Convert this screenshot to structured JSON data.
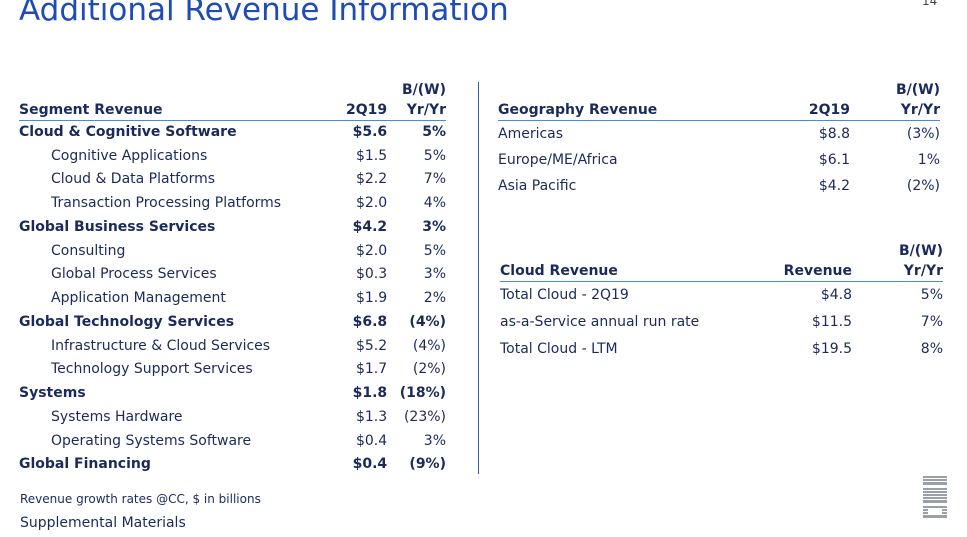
{
  "header": {
    "title": "Additional Revenue Information",
    "page_number": "14"
  },
  "segment": {
    "head_change_top": "B/(W)",
    "head_label": "Segment Revenue",
    "head_period": "2Q19",
    "head_change": "Yr/Yr",
    "rows": [
      {
        "label": "Cloud & Cognitive Software",
        "value": "$5.6",
        "change": "5%",
        "bold": true
      },
      {
        "label": "Cognitive Applications",
        "value": "$1.5",
        "change": "5%",
        "bold": false
      },
      {
        "label": "Cloud & Data Platforms",
        "value": "$2.2",
        "change": "7%",
        "bold": false
      },
      {
        "label": "Transaction Processing Platforms",
        "value": "$2.0",
        "change": "4%",
        "bold": false
      },
      {
        "label": "Global Business Services",
        "value": "$4.2",
        "change": "3%",
        "bold": true
      },
      {
        "label": "Consulting",
        "value": "$2.0",
        "change": "5%",
        "bold": false
      },
      {
        "label": "Global Process Services",
        "value": "$0.3",
        "change": "3%",
        "bold": false
      },
      {
        "label": "Application Management",
        "value": "$1.9",
        "change": "2%",
        "bold": false
      },
      {
        "label": "Global Technology Services",
        "value": "$6.8",
        "change": "(4%)",
        "bold": true
      },
      {
        "label": "Infrastructure & Cloud Services",
        "value": "$5.2",
        "change": "(4%)",
        "bold": false
      },
      {
        "label": "Technology Support Services",
        "value": "$1.7",
        "change": "(2%)",
        "bold": false
      },
      {
        "label": "Systems",
        "value": "$1.8",
        "change": "(18%)",
        "bold": true
      },
      {
        "label": "Systems Hardware",
        "value": "$1.3",
        "change": "(23%)",
        "bold": false
      },
      {
        "label": "Operating Systems Software",
        "value": "$0.4",
        "change": "3%",
        "bold": false
      },
      {
        "label": "Global Financing",
        "value": "$0.4",
        "change": "(9%)",
        "bold": true
      }
    ]
  },
  "geography": {
    "head_change_top": "B/(W)",
    "head_label": "Geography Revenue",
    "head_period": "2Q19",
    "head_change": "Yr/Yr",
    "rows": [
      {
        "label": "Americas",
        "value": "$8.8",
        "change": "(3%)"
      },
      {
        "label": "Europe/ME/Africa",
        "value": "$6.1",
        "change": "1%"
      },
      {
        "label": "Asia Pacific",
        "value": "$4.2",
        "change": "(2%)"
      }
    ]
  },
  "cloud": {
    "head_change_top": "B/(W)",
    "head_label": "Cloud Revenue",
    "head_period": "Revenue",
    "head_change": "Yr/Yr",
    "rows": [
      {
        "label": "Total Cloud - 2Q19",
        "value": "$4.8",
        "change": "5%"
      },
      {
        "label": "as-a-Service annual run rate",
        "value": "$11.5",
        "change": "7%"
      },
      {
        "label": "Total Cloud - LTM",
        "value": "$19.5",
        "change": "8%"
      }
    ]
  },
  "footer": {
    "footnote": "Revenue growth rates @CC, $ in billions",
    "supplemental": "Supplemental Materials",
    "logo_text": "IBM"
  },
  "colors": {
    "title": "#1f4bb4",
    "text": "#1b2a5a",
    "rule": "#4b8bd6",
    "divider": "#2f5fb0"
  }
}
